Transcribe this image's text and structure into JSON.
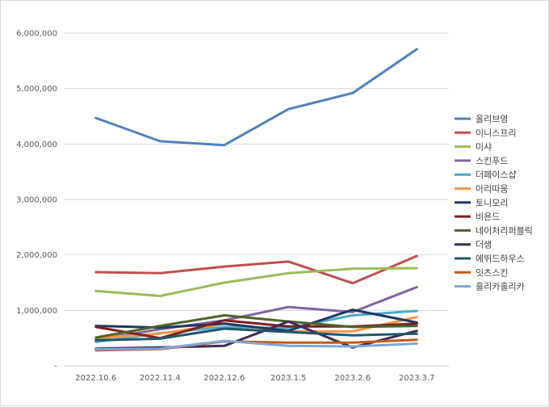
{
  "chart_data": {
    "type": "line",
    "title": "",
    "xlabel": "",
    "ylabel": "",
    "ylim": [
      0,
      6000000
    ],
    "yticks": [
      0,
      1000000,
      2000000,
      3000000,
      4000000,
      5000000,
      6000000
    ],
    "ytick_labels": [
      "-",
      "1,000,000",
      "2,000,000",
      "3,000,000",
      "4,000,000",
      "5,000,000",
      "6,000,000"
    ],
    "grid": true,
    "legend_position": "right",
    "categories": [
      "2022.10.6",
      "2022.11.4",
      "2022.12.6",
      "2023.1.5",
      "2023.2.6",
      "2023.3.7"
    ],
    "series": [
      {
        "name": "올리브영",
        "color": "#4f81bd",
        "values": [
          4470000,
          4050000,
          3980000,
          4630000,
          4920000,
          5710000
        ]
      },
      {
        "name": "이니스프리",
        "color": "#c0504d",
        "values": [
          1690000,
          1670000,
          1790000,
          1880000,
          1490000,
          1980000
        ]
      },
      {
        "name": "미샤",
        "color": "#9bbb59",
        "values": [
          1350000,
          1260000,
          1500000,
          1670000,
          1750000,
          1760000
        ]
      },
      {
        "name": "스킨푸드",
        "color": "#8064a2",
        "values": [
          470000,
          660000,
          820000,
          1060000,
          970000,
          1420000
        ]
      },
      {
        "name": "더페이스샵",
        "color": "#4bacc6",
        "values": [
          430000,
          590000,
          700000,
          680000,
          910000,
          990000
        ]
      },
      {
        "name": "아리따움",
        "color": "#f79646",
        "values": [
          500000,
          580000,
          760000,
          620000,
          620000,
          880000
        ]
      },
      {
        "name": "토니모리",
        "color": "#1f3864",
        "values": [
          720000,
          690000,
          760000,
          630000,
          1010000,
          780000
        ]
      },
      {
        "name": "비욘드",
        "color": "#7f1f1f",
        "values": [
          700000,
          500000,
          820000,
          710000,
          710000,
          760000
        ]
      },
      {
        "name": "네이처리퍼블릭",
        "color": "#4f6228",
        "values": [
          510000,
          720000,
          910000,
          800000,
          700000,
          720000
        ]
      },
      {
        "name": "더샘",
        "color": "#3f2b5a",
        "values": [
          310000,
          330000,
          360000,
          800000,
          330000,
          630000
        ]
      },
      {
        "name": "에뛰드하우스",
        "color": "#205867",
        "values": [
          460000,
          490000,
          670000,
          610000,
          550000,
          580000
        ]
      },
      {
        "name": "잇츠스킨",
        "color": "#c55a11",
        "values": [
          280000,
          300000,
          440000,
          420000,
          420000,
          470000
        ]
      },
      {
        "name": "홀리카홀리카",
        "color": "#7ea6d8",
        "values": [
          300000,
          310000,
          450000,
          360000,
          350000,
          400000
        ]
      }
    ]
  }
}
